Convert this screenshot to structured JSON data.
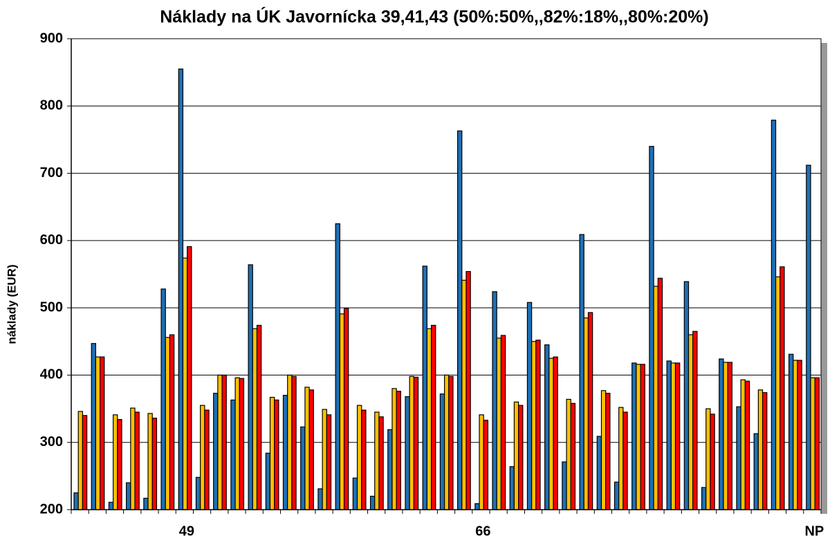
{
  "chart_data": {
    "type": "bar",
    "title": "Náklady na ÚK Javornícka 39,41,43 (50%:50%,,82%:18%,,80%:20%)",
    "y_label": "náklady (EUR)",
    "categories": [
      null,
      null,
      null,
      null,
      null,
      null,
      "49",
      null,
      null,
      null,
      null,
      null,
      null,
      null,
      null,
      null,
      null,
      null,
      null,
      null,
      null,
      null,
      null,
      "66",
      null,
      null,
      null,
      null,
      null,
      null,
      null,
      null,
      null,
      null,
      null,
      null,
      null,
      null,
      null,
      null,
      null,
      null,
      "NP"
    ],
    "series": [
      {
        "color": "#1f6fb4",
        "values": [
          225,
          447,
          211,
          240,
          217,
          528,
          855,
          248,
          373,
          363,
          564,
          284,
          370,
          323,
          231,
          625,
          247,
          220,
          319,
          368,
          562,
          372,
          763,
          209,
          524,
          264,
          508,
          445,
          271,
          609,
          309,
          241,
          418,
          740,
          421,
          539,
          233,
          424,
          353,
          313,
          779,
          431,
          712
        ]
      },
      {
        "color": "#ffc000",
        "values": [
          346,
          427,
          341,
          351,
          343,
          456,
          574,
          355,
          400,
          396,
          469,
          367,
          400,
          382,
          349,
          491,
          355,
          345,
          380,
          398,
          469,
          400,
          541,
          341,
          455,
          360,
          450,
          425,
          364,
          485,
          377,
          352,
          416,
          532,
          418,
          460,
          350,
          419,
          393,
          378,
          546,
          422,
          396
        ]
      },
      {
        "color": "#ff0000",
        "values": [
          340,
          427,
          334,
          345,
          336,
          460,
          591,
          348,
          400,
          395,
          474,
          363,
          398,
          378,
          341,
          499,
          348,
          338,
          376,
          397,
          474,
          398,
          554,
          333,
          459,
          355,
          452,
          427,
          358,
          493,
          373,
          345,
          416,
          544,
          418,
          465,
          342,
          419,
          391,
          374,
          561,
          422,
          396
        ]
      }
    ],
    "ylim": [
      200,
      900
    ],
    "yticks": [
      200,
      300,
      400,
      500,
      600,
      700,
      800,
      900
    ],
    "grid": true
  }
}
